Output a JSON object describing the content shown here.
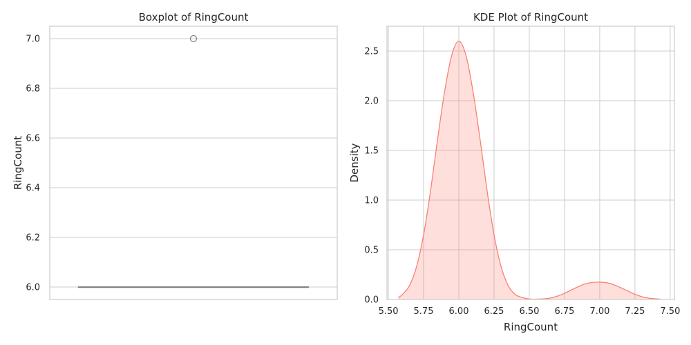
{
  "chart_data": [
    {
      "type": "box",
      "title": "Boxplot of RingCount",
      "xlabel": "",
      "ylabel": "RingCount",
      "ylim": [
        5.95,
        7.05
      ],
      "yticks": [
        6.0,
        6.2,
        6.4,
        6.6,
        6.8,
        7.0
      ],
      "ytick_labels": [
        "6.0",
        "6.2",
        "6.4",
        "6.6",
        "6.8",
        "7.0"
      ],
      "grid": true,
      "box": {
        "whisker_low": 6.0,
        "q1": 6.0,
        "median": 6.0,
        "q3": 6.0,
        "whisker_high": 6.0
      },
      "outliers": [
        7.0
      ],
      "color": "#808080"
    },
    {
      "type": "area",
      "title": "KDE Plot of RingCount",
      "xlabel": "RingCount",
      "ylabel": "Density",
      "xlim": [
        5.49,
        7.53
      ],
      "ylim": [
        0,
        2.75
      ],
      "xticks": [
        5.5,
        5.75,
        6.0,
        6.25,
        6.5,
        6.75,
        7.0,
        7.25,
        7.5
      ],
      "xtick_labels": [
        "5.50",
        "5.75",
        "6.00",
        "6.25",
        "6.50",
        "6.75",
        "7.00",
        "7.25",
        "7.50"
      ],
      "yticks": [
        0,
        0.5,
        1.0,
        1.5,
        2.0,
        2.5
      ],
      "ytick_labels": [
        "0.0",
        "0.5",
        "1.0",
        "1.5",
        "2.0",
        "2.5"
      ],
      "grid": true,
      "color": "#fa8072",
      "series": [
        {
          "x": [
            5.57,
            5.6,
            5.65,
            5.7,
            5.75,
            5.8,
            5.85,
            5.9,
            5.95,
            6.0,
            6.05,
            6.1,
            6.15,
            6.2,
            6.25,
            6.3,
            6.35,
            6.4,
            6.45,
            6.5,
            6.55,
            6.6,
            6.65,
            6.7,
            6.75,
            6.8,
            6.85,
            6.9,
            6.95,
            7.0,
            7.05,
            7.1,
            7.15,
            7.2,
            7.25,
            7.3,
            7.35,
            7.43
          ],
          "y": [
            0.02,
            0.05,
            0.14,
            0.33,
            0.65,
            1.1,
            1.62,
            2.1,
            2.46,
            2.6,
            2.46,
            2.1,
            1.62,
            1.1,
            0.65,
            0.33,
            0.14,
            0.05,
            0.02,
            0.005,
            0.003,
            0.006,
            0.015,
            0.034,
            0.062,
            0.097,
            0.13,
            0.158,
            0.172,
            0.174,
            0.168,
            0.148,
            0.118,
            0.084,
            0.052,
            0.028,
            0.013,
            0.003
          ]
        }
      ]
    }
  ]
}
